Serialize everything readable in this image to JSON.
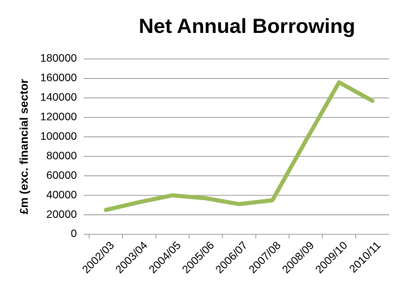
{
  "chart_data": {
    "type": "line",
    "title": "Net Annual Borrowing",
    "y_label": "£m (exc. financial sector",
    "categories": [
      "2002/03",
      "2003/04",
      "2004/05",
      "2005/06",
      "2006/07",
      "2007/08",
      "2008/09",
      "2009/10",
      "2010/11"
    ],
    "series": [
      {
        "name": "Net Annual Borrowing",
        "color": "#9bbb59",
        "values": [
          25000,
          33000,
          40000,
          37000,
          31000,
          35000,
          96000,
          156000,
          137000
        ]
      }
    ],
    "ylim": [
      0,
      180000
    ],
    "yticks": [
      0,
      20000,
      40000,
      60000,
      80000,
      100000,
      120000,
      140000,
      160000,
      180000
    ],
    "grid": true
  }
}
